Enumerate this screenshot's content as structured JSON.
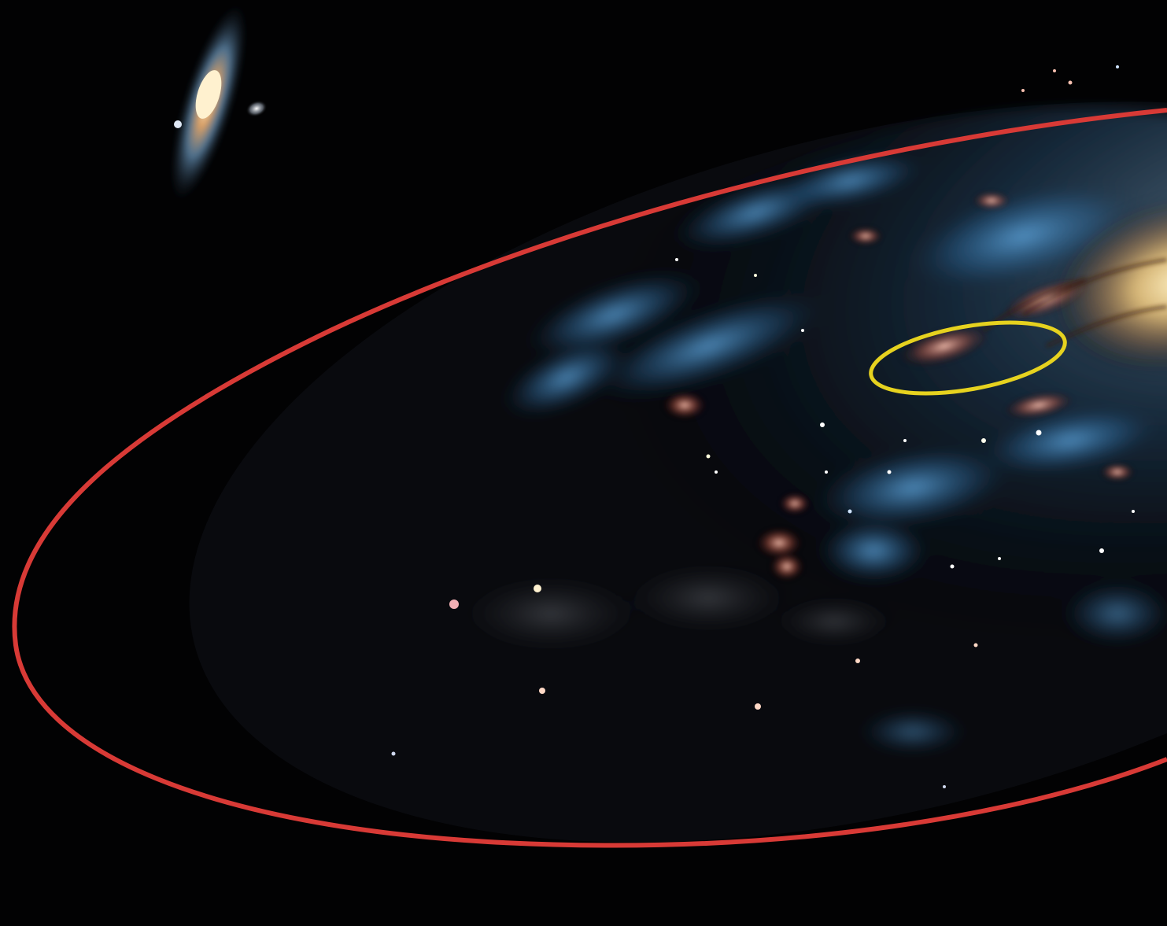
{
  "scene": {
    "kind": "space-illustration",
    "subjects": [
      "milky-way-galaxy",
      "andromeda-galaxy",
      "satellite-galaxy"
    ]
  },
  "colors": {
    "background": "#020203",
    "galaxy_outline": "#d83a36",
    "sun_region_outline": "#e6d21f",
    "spiral_arm_blue": "#3f86c4",
    "star_glow_pink": "#e8a08f",
    "core_yellow": "#f3c97a"
  }
}
